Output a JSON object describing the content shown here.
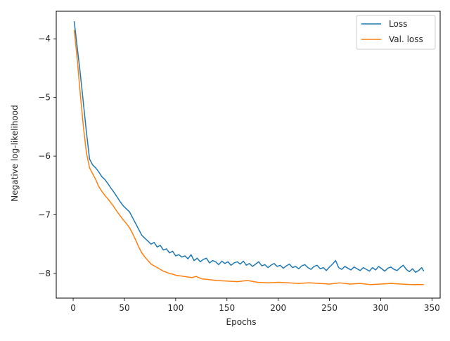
{
  "chart_data": {
    "type": "line",
    "title": "",
    "xlabel": "Epochs",
    "ylabel": "Negative log-likelihood",
    "xlim": [
      -16.5,
      358
    ],
    "ylim": [
      -8.42,
      -3.53
    ],
    "xticks": [
      0,
      50,
      100,
      150,
      200,
      250,
      300,
      350
    ],
    "xtick_labels": [
      "0",
      "50",
      "100",
      "150",
      "200",
      "250",
      "300",
      "350"
    ],
    "yticks": [
      -8,
      -7,
      -6,
      -5,
      -4
    ],
    "ytick_labels": [
      "−8",
      "−7",
      "−6",
      "−5",
      "−4"
    ],
    "grid": false,
    "legend_position": "top-right",
    "series": [
      {
        "name": "Loss",
        "color": "#1f77b4",
        "x": [
          1,
          4,
          7,
          10,
          13,
          16,
          19,
          22,
          25,
          28,
          31,
          34,
          37,
          40,
          43,
          46,
          49,
          52,
          55,
          58,
          61,
          64,
          67,
          70,
          73,
          76,
          79,
          82,
          85,
          88,
          91,
          94,
          97,
          100,
          103,
          106,
          109,
          112,
          115,
          118,
          121,
          124,
          127,
          130,
          133,
          136,
          139,
          142,
          145,
          148,
          151,
          154,
          157,
          160,
          163,
          166,
          169,
          172,
          175,
          178,
          181,
          184,
          187,
          190,
          193,
          196,
          199,
          202,
          205,
          208,
          211,
          214,
          217,
          220,
          223,
          226,
          229,
          232,
          235,
          238,
          241,
          244,
          247,
          250,
          253,
          256,
          259,
          262,
          265,
          268,
          271,
          274,
          277,
          280,
          283,
          286,
          289,
          292,
          295,
          298,
          301,
          304,
          307,
          310,
          313,
          316,
          319,
          322,
          325,
          328,
          331,
          334,
          337,
          340,
          342
        ],
        "y": [
          -3.7,
          -4.15,
          -4.6,
          -5.1,
          -5.6,
          -6.05,
          -6.15,
          -6.2,
          -6.27,
          -6.35,
          -6.4,
          -6.47,
          -6.55,
          -6.62,
          -6.7,
          -6.78,
          -6.85,
          -6.9,
          -6.95,
          -7.05,
          -7.15,
          -7.25,
          -7.35,
          -7.4,
          -7.45,
          -7.5,
          -7.47,
          -7.55,
          -7.52,
          -7.6,
          -7.58,
          -7.65,
          -7.62,
          -7.7,
          -7.68,
          -7.72,
          -7.7,
          -7.75,
          -7.68,
          -7.78,
          -7.74,
          -7.8,
          -7.76,
          -7.74,
          -7.82,
          -7.78,
          -7.8,
          -7.85,
          -7.79,
          -7.83,
          -7.8,
          -7.86,
          -7.82,
          -7.8,
          -7.84,
          -7.79,
          -7.86,
          -7.83,
          -7.88,
          -7.84,
          -7.8,
          -7.87,
          -7.85,
          -7.9,
          -7.86,
          -7.83,
          -7.88,
          -7.86,
          -7.91,
          -7.87,
          -7.84,
          -7.9,
          -7.88,
          -7.92,
          -7.87,
          -7.85,
          -7.9,
          -7.93,
          -7.88,
          -7.86,
          -7.92,
          -7.9,
          -7.95,
          -7.89,
          -7.84,
          -7.78,
          -7.9,
          -7.93,
          -7.88,
          -7.91,
          -7.94,
          -7.89,
          -7.92,
          -7.95,
          -7.9,
          -7.93,
          -7.96,
          -7.9,
          -7.94,
          -7.88,
          -7.92,
          -7.96,
          -7.91,
          -7.89,
          -7.93,
          -7.95,
          -7.9,
          -7.86,
          -7.93,
          -7.97,
          -7.92,
          -7.98,
          -7.95,
          -7.9,
          -7.96
        ]
      },
      {
        "name": "Val. loss",
        "color": "#ff7f0e",
        "x": [
          1,
          4,
          7,
          10,
          13,
          16,
          19,
          22,
          25,
          28,
          31,
          34,
          37,
          40,
          43,
          46,
          49,
          52,
          55,
          58,
          61,
          64,
          67,
          70,
          73,
          76,
          79,
          82,
          85,
          88,
          91,
          94,
          97,
          100,
          104,
          108,
          112,
          116,
          120,
          125,
          130,
          135,
          140,
          150,
          160,
          170,
          180,
          190,
          200,
          210,
          220,
          230,
          240,
          250,
          260,
          270,
          280,
          290,
          300,
          310,
          320,
          330,
          342
        ],
        "y": [
          -3.85,
          -4.35,
          -4.95,
          -5.5,
          -5.95,
          -6.2,
          -6.3,
          -6.4,
          -6.52,
          -6.6,
          -6.67,
          -6.73,
          -6.8,
          -6.87,
          -6.95,
          -7.02,
          -7.09,
          -7.15,
          -7.22,
          -7.32,
          -7.43,
          -7.55,
          -7.65,
          -7.72,
          -7.78,
          -7.84,
          -7.87,
          -7.9,
          -7.93,
          -7.96,
          -7.98,
          -8.0,
          -8.01,
          -8.03,
          -8.04,
          -8.05,
          -8.06,
          -8.07,
          -8.05,
          -8.09,
          -8.1,
          -8.11,
          -8.12,
          -8.13,
          -8.14,
          -8.12,
          -8.15,
          -8.16,
          -8.15,
          -8.16,
          -8.17,
          -8.16,
          -8.17,
          -8.18,
          -8.16,
          -8.18,
          -8.17,
          -8.19,
          -8.18,
          -8.17,
          -8.18,
          -8.19,
          -8.19
        ]
      }
    ]
  }
}
